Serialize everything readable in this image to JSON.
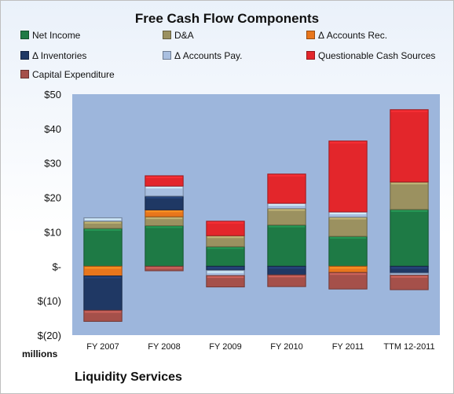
{
  "company": "Liquidity Services",
  "chart_data": {
    "type": "bar",
    "stacked": true,
    "title": "Free Cash Flow Components",
    "ylabel": "millions",
    "xlabel": "",
    "categories": [
      "FY 2007",
      "FY 2008",
      "FY 2009",
      "FY 2010",
      "FY 2011",
      "TTM 12-2011"
    ],
    "ylim": [
      -20,
      50
    ],
    "yticks": [
      50,
      40,
      30,
      20,
      10,
      0,
      -10,
      -20
    ],
    "yticklabels": [
      "$50",
      "$40",
      "$30",
      "$20",
      "$10",
      "$-",
      "$(10)",
      "$(20)"
    ],
    "grid": false,
    "legend": "top",
    "series": [
      {
        "name": "Net Income",
        "color": "#1e7a45",
        "values": [
          11.0,
          11.8,
          5.7,
          12.0,
          8.7,
          16.5
        ]
      },
      {
        "name": "D&A",
        "color": "#9b9160",
        "values": [
          2.1,
          2.6,
          3.2,
          4.8,
          5.6,
          8.0
        ]
      },
      {
        "name": "Δ Accounts Rec.",
        "color": "#e8761c",
        "values": [
          -2.8,
          2.0,
          0.0,
          0.0,
          -1.8,
          0.0
        ]
      },
      {
        "name": "Δ Inventories",
        "color": "#1f3864",
        "values": [
          -10.0,
          4.0,
          -1.2,
          -2.5,
          0.0,
          -2.0
        ]
      },
      {
        "name": "Δ Accounts Pay.",
        "color": "#a9bfe0",
        "values": [
          1.0,
          2.9,
          -1.5,
          1.5,
          1.5,
          -0.6
        ]
      },
      {
        "name": "Questionable Cash Sources",
        "color": "#e3262b",
        "values": [
          0.0,
          3.0,
          4.2,
          8.5,
          20.6,
          21.0
        ]
      },
      {
        "name": "Capital Expenditure",
        "color": "#a5504a",
        "values": [
          -3.2,
          -1.3,
          -3.3,
          -3.4,
          -4.8,
          -4.2
        ]
      }
    ]
  }
}
